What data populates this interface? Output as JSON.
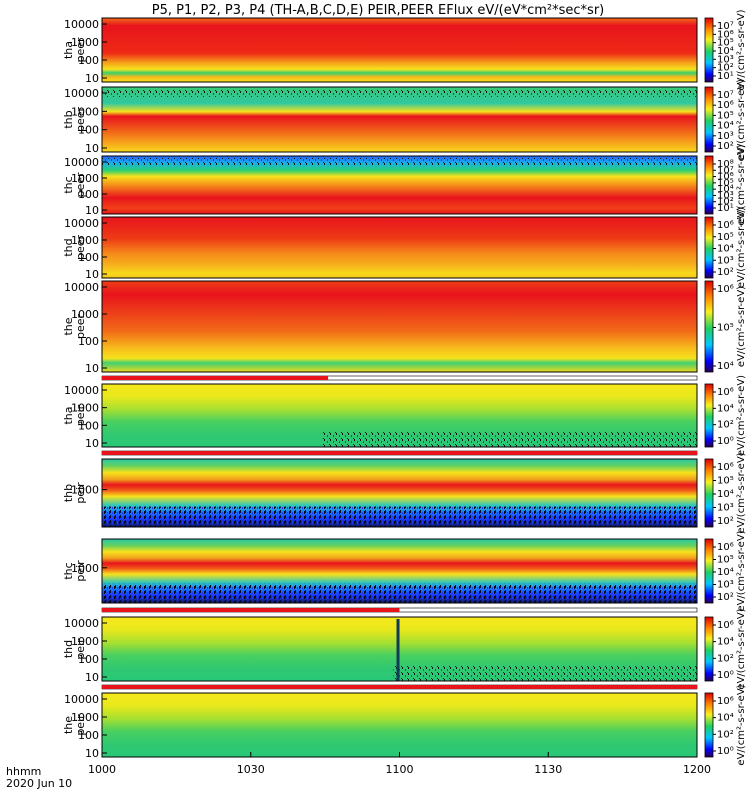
{
  "title": "P5, P1, P2, P3, P4 (TH-A,B,C,D,E) PEIR,PEER EFlux eV/(eV*cm²*sec*sr)",
  "footer": {
    "time_label": "hhmm",
    "date_label": "2020 Jun 10"
  },
  "x_axis": {
    "ticks": [
      "1000",
      "1030",
      "1100",
      "1130",
      "1200"
    ],
    "range_minutes": [
      0,
      120
    ]
  },
  "colorbar_side_label": "[eV/(cm²-s-sr-eV)]",
  "chart_data": [
    {
      "type": "heatmap",
      "probe": "tha",
      "species": "peer",
      "ylabel": [
        "tha",
        "peer"
      ],
      "yticks": [
        "10000",
        "1000",
        "100",
        "10"
      ],
      "cbticks": [
        "10⁷",
        "10⁶",
        "10⁵",
        "10⁴",
        "10³",
        "10²",
        "10¹"
      ],
      "colorbar_label": "eV/(cm²-s-sr-eV)"
    },
    {
      "type": "heatmap",
      "probe": "thb",
      "species": "peer",
      "ylabel": [
        "thb",
        "peer"
      ],
      "yticks": [
        "10000",
        "1000",
        "100",
        "10"
      ],
      "cbticks": [
        "10⁷",
        "10⁶",
        "10⁵",
        "10⁴",
        "10³",
        "10²"
      ],
      "colorbar_label": "eV/(cm²-s-sr-eV)"
    },
    {
      "type": "heatmap",
      "probe": "thc",
      "species": "peer",
      "ylabel": [
        "thc",
        "peer"
      ],
      "yticks": [
        "10000",
        "1000",
        "100",
        "10"
      ],
      "cbticks": [
        "10⁸",
        "10⁷",
        "10⁶",
        "10⁵",
        "10⁴",
        "10³",
        "10²",
        "10¹"
      ],
      "colorbar_label": "eV/(cm²-s-sr-eV)"
    },
    {
      "type": "heatmap",
      "probe": "thd",
      "species": "peer",
      "ylabel": [
        "thd",
        "peer"
      ],
      "yticks": [
        "10000",
        "1000",
        "100",
        "10"
      ],
      "cbticks": [
        "10⁶",
        "10⁵",
        "10⁴",
        "10³",
        "10²"
      ],
      "colorbar_label": "eV/(cm²-s-sr-eV)"
    },
    {
      "type": "heatmap",
      "probe": "the",
      "species": "peer",
      "ylabel": [
        "the",
        "peer"
      ],
      "yticks": [
        "10000",
        "1000",
        "100",
        "10"
      ],
      "cbticks": [
        "10⁶",
        "10⁵",
        "10⁴"
      ],
      "colorbar_label": "eV/(cm²-s-sr-eV)"
    },
    {
      "type": "heatmap",
      "probe": "tha",
      "species": "peir",
      "ylabel": [
        "tha",
        "peir"
      ],
      "yticks": [
        "10000",
        "1000",
        "100",
        "10"
      ],
      "cbticks": [
        "10⁶",
        "10⁴",
        "10²",
        "10⁰"
      ],
      "colorbar_label": "eV/(cm²-s-sr-eV)"
    },
    {
      "type": "heatmap",
      "probe": "thb",
      "species": "peir",
      "ylabel": [
        "thb",
        "peir"
      ],
      "yticks": [
        "1000"
      ],
      "cbticks": [
        "10⁶",
        "10⁵",
        "10⁴",
        "10³",
        "10²"
      ],
      "colorbar_label": "eV/(cm²-s-sr-eV)"
    },
    {
      "type": "heatmap",
      "probe": "thc",
      "species": "peir",
      "ylabel": [
        "thc",
        "peir"
      ],
      "yticks": [
        "1000"
      ],
      "cbticks": [
        "10⁶",
        "10⁵",
        "10⁴",
        "10³",
        "10²"
      ],
      "colorbar_label": "eV/(cm²-s-sr-eV)"
    },
    {
      "type": "heatmap",
      "probe": "thd",
      "species": "peir",
      "ylabel": [
        "thd",
        "peir"
      ],
      "yticks": [
        "10000",
        "1000",
        "100",
        "10"
      ],
      "cbticks": [
        "10⁶",
        "10⁴",
        "10²",
        "10⁰"
      ],
      "colorbar_label": "eV/(cm²-s-sr-eV)"
    },
    {
      "type": "heatmap",
      "probe": "the",
      "species": "peir",
      "ylabel": [
        "the",
        "peir"
      ],
      "yticks": [
        "10000",
        "1000",
        "100",
        "10"
      ],
      "cbticks": [
        "10⁶",
        "10⁴",
        "10²",
        "10⁰"
      ],
      "colorbar_label": "eV/(cm²-s-sr-eV)"
    }
  ],
  "colors": {
    "high": "#e8141c",
    "mid": "#f7e21c",
    "low": "#22c85a",
    "floor": "#1a3cff"
  }
}
